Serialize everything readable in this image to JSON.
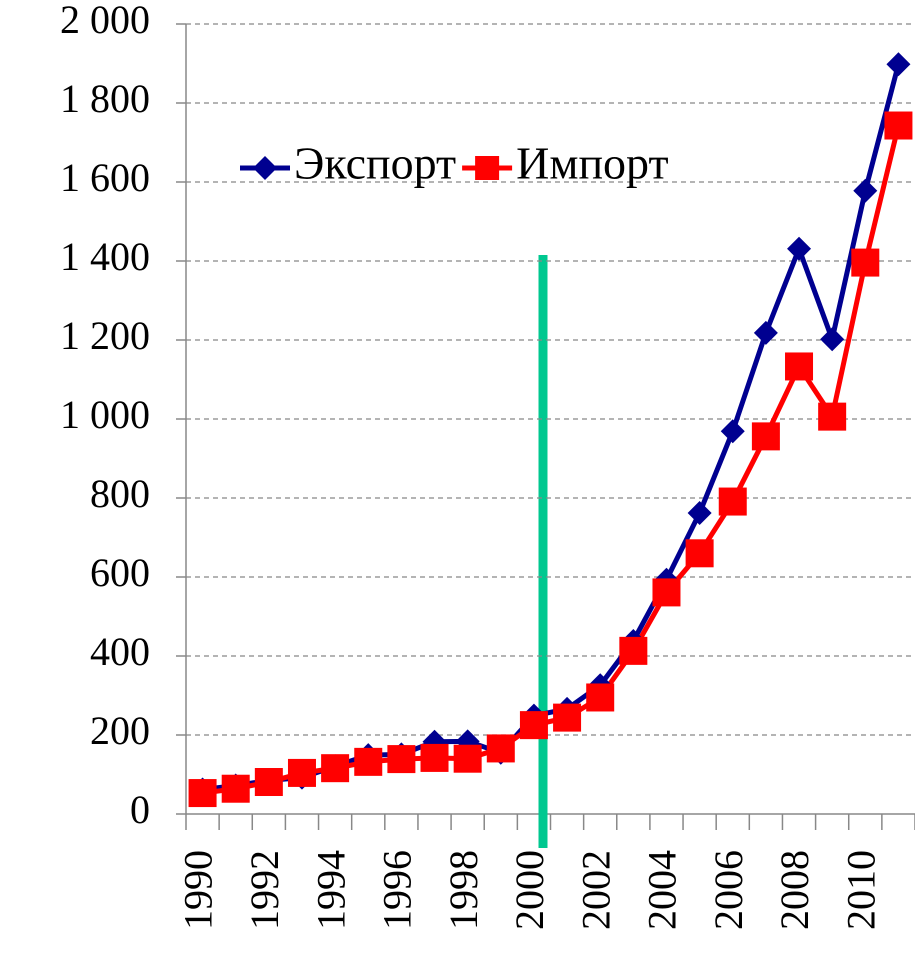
{
  "chart_data": {
    "type": "line",
    "categories": [
      "1990",
      null,
      "1992",
      null,
      "1994",
      null,
      "1996",
      null,
      "1998",
      null,
      "2000",
      null,
      "2002",
      null,
      "2004",
      null,
      "2006",
      null,
      "2008",
      null,
      "2010",
      null
    ],
    "series": [
      {
        "name": "Экспорт",
        "color": "#000090",
        "marker": "diamond",
        "values": [
          62,
          72,
          85,
          92,
          121,
          149,
          151,
          183,
          184,
          155,
          249,
          266,
          326,
          438,
          593,
          762,
          969,
          1218,
          1431,
          1202,
          1578,
          1898
        ]
      },
      {
        "name": "Импорт",
        "color": "#ff0000",
        "marker": "square",
        "values": [
          53,
          64,
          81,
          104,
          116,
          132,
          139,
          142,
          140,
          166,
          225,
          244,
          295,
          413,
          561,
          660,
          791,
          956,
          1133,
          1006,
          1396,
          1743
        ]
      }
    ],
    "ylim": [
      0,
      2000
    ],
    "yticks": [
      0,
      200,
      400,
      600,
      800,
      {
        "value": 1000,
        "label": "1 000"
      },
      {
        "value": 1200,
        "label": "1 200"
      },
      {
        "value": 1400,
        "label": "1 400"
      },
      {
        "value": 1600,
        "label": "1 600"
      },
      {
        "value": 1800,
        "label": "1 800"
      },
      {
        "value": 2000,
        "label": "2 000"
      }
    ],
    "grid": true,
    "legend": "top"
  }
}
